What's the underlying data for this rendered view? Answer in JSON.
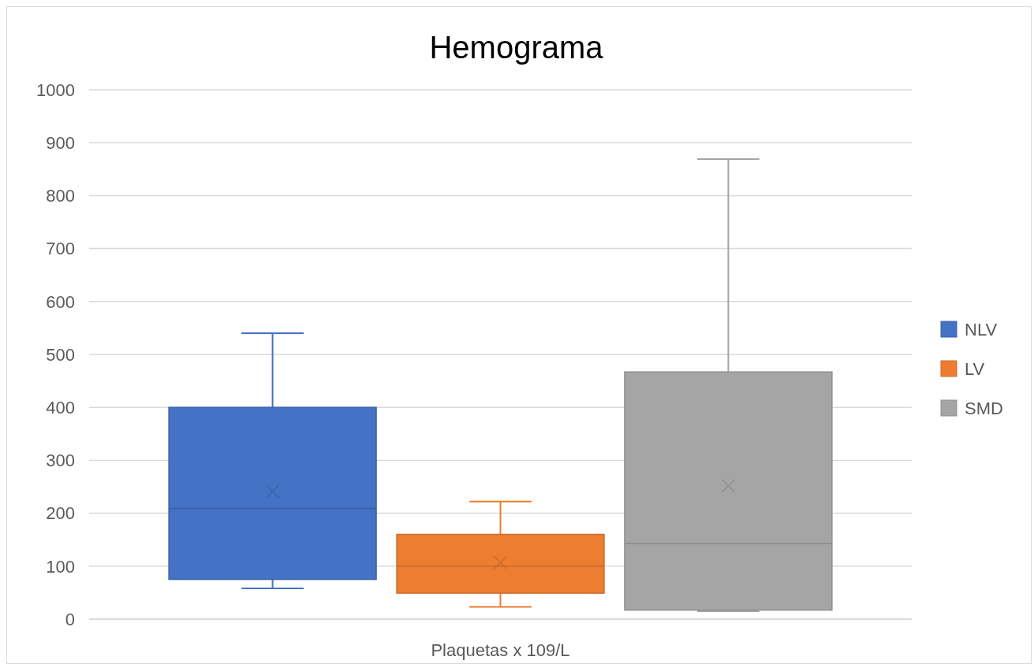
{
  "chart_data": {
    "type": "box",
    "title": "Hemograma",
    "categories": [
      "Plaquetas x 109/L"
    ],
    "ylim": [
      0,
      1000
    ],
    "yticks": [
      0,
      100,
      200,
      300,
      400,
      500,
      600,
      700,
      800,
      900,
      1000
    ],
    "grid": "y",
    "legend": "right",
    "series": [
      {
        "name": "NLV",
        "color": "#4472c4",
        "boxes": [
          {
            "low": 58,
            "q1": 75,
            "median": 209,
            "q3": 400,
            "high": 540,
            "mean": 241
          }
        ]
      },
      {
        "name": "LV",
        "color": "#ed7d31",
        "boxes": [
          {
            "low": 23,
            "q1": 49,
            "median": 100,
            "q3": 160,
            "high": 222,
            "mean": 107
          }
        ]
      },
      {
        "name": "SMD",
        "color": "#a5a5a5",
        "boxes": [
          {
            "low": 15,
            "q1": 17,
            "median": 143,
            "q3": 467,
            "high": 869,
            "mean": 252
          }
        ]
      }
    ]
  }
}
